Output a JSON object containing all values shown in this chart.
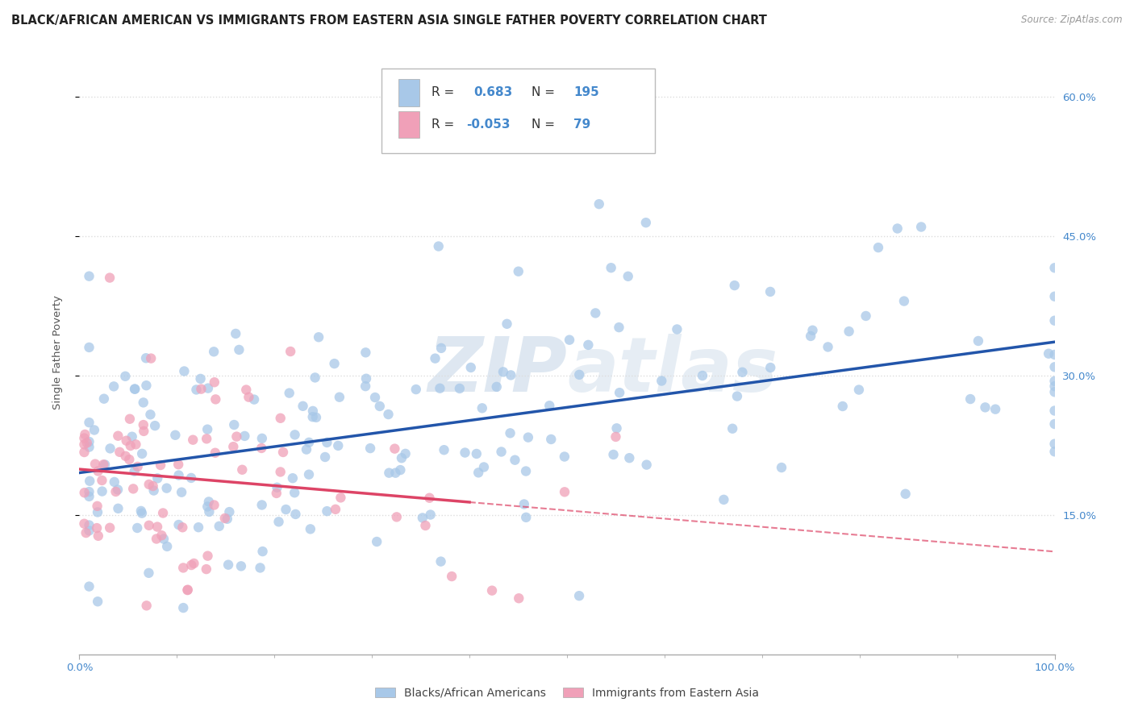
{
  "title": "BLACK/AFRICAN AMERICAN VS IMMIGRANTS FROM EASTERN ASIA SINGLE FATHER POVERTY CORRELATION CHART",
  "source": "Source: ZipAtlas.com",
  "ylabel": "Single Father Poverty",
  "xlabel": "",
  "watermark": "ZIPAtlas",
  "blue_R": 0.683,
  "blue_N": 195,
  "pink_R": -0.053,
  "pink_N": 79,
  "blue_color": "#A8C8E8",
  "pink_color": "#F0A0B8",
  "blue_line_color": "#2255AA",
  "pink_line_color": "#DD4466",
  "xlim": [
    0,
    100
  ],
  "ylim": [
    0,
    65
  ],
  "yticks": [
    15,
    30,
    45,
    60
  ],
  "ytick_labels": [
    "15.0%",
    "30.0%",
    "45.0%",
    "60.0%"
  ],
  "xtick_labels": [
    "0.0%",
    "100.0%"
  ],
  "background_color": "#FFFFFF",
  "grid_color": "#CCCCCC",
  "title_fontsize": 11,
  "axis_fontsize": 10,
  "legend_fontsize": 11,
  "seed": 12345,
  "blue_x_mean": 50,
  "blue_x_std": 28,
  "blue_y_at_0": 20,
  "blue_y_at_100": 33,
  "pink_x_mean": 15,
  "pink_x_std": 12,
  "pink_y_mean": 18,
  "pink_y_std": 8,
  "pink_x_solid_end": 40,
  "pink_x_dashed_end": 100
}
